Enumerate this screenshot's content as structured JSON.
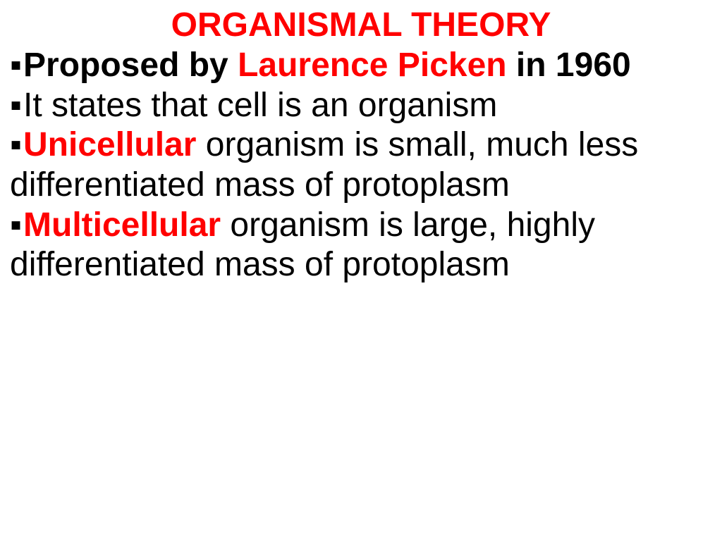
{
  "colors": {
    "red": "#ff0000",
    "black": "#000000",
    "bullet": "#000000",
    "background": "#ffffff"
  },
  "typography": {
    "title_fontsize": 48,
    "body_fontsize": 48,
    "font_family": "Trebuchet MS"
  },
  "title": "ORGANISMAL THEORY",
  "bullet_glyph": "▪",
  "bullets": {
    "b1": {
      "parts": {
        "p1": "Proposed by ",
        "p2": "Laurence Picken",
        "p3": " in 1960"
      }
    },
    "b2": {
      "parts": {
        "p1": "It states that cell is an organism"
      }
    },
    "b3": {
      "parts": {
        "p1": "Unicellular",
        "p2": " organism is small, much less differentiated mass of protoplasm"
      }
    },
    "b4": {
      "parts": {
        "p1": "Multicellular",
        "p2": " organism is large, highly differentiated mass of protoplasm"
      }
    }
  }
}
